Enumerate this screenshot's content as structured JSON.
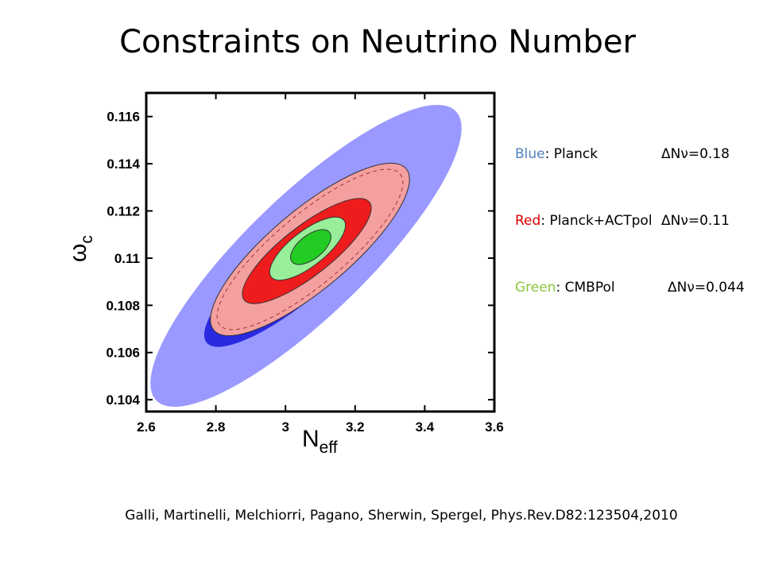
{
  "title": "Constraints on Neutrino Number",
  "chart_data": {
    "type": "contour",
    "xlabel": "N",
    "xlabel_sub": "eff",
    "ylabel": "ω",
    "ylabel_sub": "c",
    "xlim": [
      2.6,
      3.6
    ],
    "xticks": [
      2.6,
      2.8,
      3,
      3.2,
      3.4,
      3.6
    ],
    "ylim": [
      0.1035,
      0.117
    ],
    "yticks": [
      0.104,
      0.106,
      0.108,
      0.11,
      0.112,
      0.114,
      0.116
    ],
    "legend": [
      {
        "name": "Blue",
        "label": ": Planck",
        "delta": "ΔNν=0.18",
        "color": "#4f81bd"
      },
      {
        "name": "Red",
        "label": ": Planck+ACTpol",
        "delta": "ΔNν=0.11",
        "color": "#e00000"
      },
      {
        "name": "Green",
        "label": ": CMBPol",
        "delta": "ΔNν=0.044",
        "color": "#8cc63f"
      }
    ]
  },
  "citation": "Galli, Martinelli, Melchiorri, Pagano, Sherwin, Spergel,  Phys.Rev.D82:123504,2010"
}
